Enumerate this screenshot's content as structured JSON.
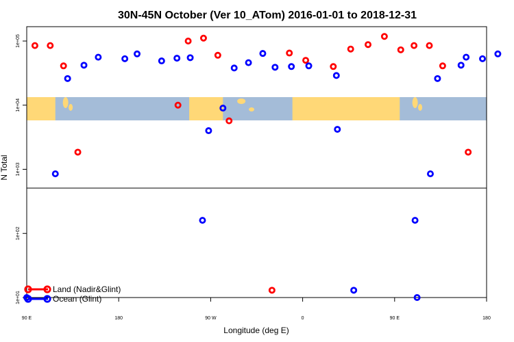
{
  "chart_data": {
    "type": "scatter",
    "title": "30N-45N October (Ver 10_ATom)   2016-01-01 to 2018-12-31",
    "xlabel": "Longitude (deg E)",
    "ylabel": "N Total",
    "x_tick_labels": [
      "90 E",
      "180",
      "90 W",
      "0",
      "90 E",
      "180"
    ],
    "x_tick_values": [
      90,
      180,
      270,
      360,
      450,
      540
    ],
    "y_tick_labels": [
      "1e+01",
      "1e+02",
      "1e+03",
      "1e+04",
      "1e+05"
    ],
    "y_tick_values": [
      10,
      100,
      1000,
      10000,
      100000
    ],
    "xlim": [
      90,
      540
    ],
    "ylim": [
      10,
      130000
    ],
    "yscale": "log",
    "grid": false,
    "legend_position": "bottom-left",
    "series": [
      {
        "name": "Land (Nadir&Glint)",
        "color": "#ff0000",
        "x": [
          98,
          113,
          126,
          140,
          238,
          248,
          263,
          277,
          288,
          330,
          347,
          363,
          390,
          407,
          424,
          440,
          456,
          469,
          484,
          497,
          522
        ],
        "y": [
          85000,
          85000,
          41000,
          1850,
          10000,
          100000,
          111000,
          60000,
          5700,
          13,
          65000,
          50000,
          40000,
          75000,
          88000,
          118000,
          73000,
          85000,
          85000,
          41000,
          1850
        ]
      },
      {
        "name": "Ocean (Glint)",
        "color": "#0000ff",
        "x": [
          90,
          118,
          130,
          146,
          160,
          186,
          198,
          222,
          237,
          250,
          268,
          262,
          282,
          293,
          307,
          321,
          333,
          349,
          366,
          393,
          394,
          410,
          470,
          472,
          485,
          492,
          515,
          520,
          536,
          551
        ],
        "y": [
          10,
          850,
          26000,
          42000,
          56000,
          53000,
          63000,
          49000,
          54000,
          55000,
          4000,
          160,
          9000,
          38000,
          46000,
          64000,
          39000,
          40000,
          41000,
          29000,
          4200,
          13,
          160,
          10,
          850,
          26000,
          42000,
          56000,
          53000,
          63000
        ]
      }
    ]
  },
  "colors": {
    "map_ocean": "#a4bcd8",
    "map_land": "#ffd877",
    "land_series": "#ff0000",
    "ocean_series": "#0000ff"
  }
}
